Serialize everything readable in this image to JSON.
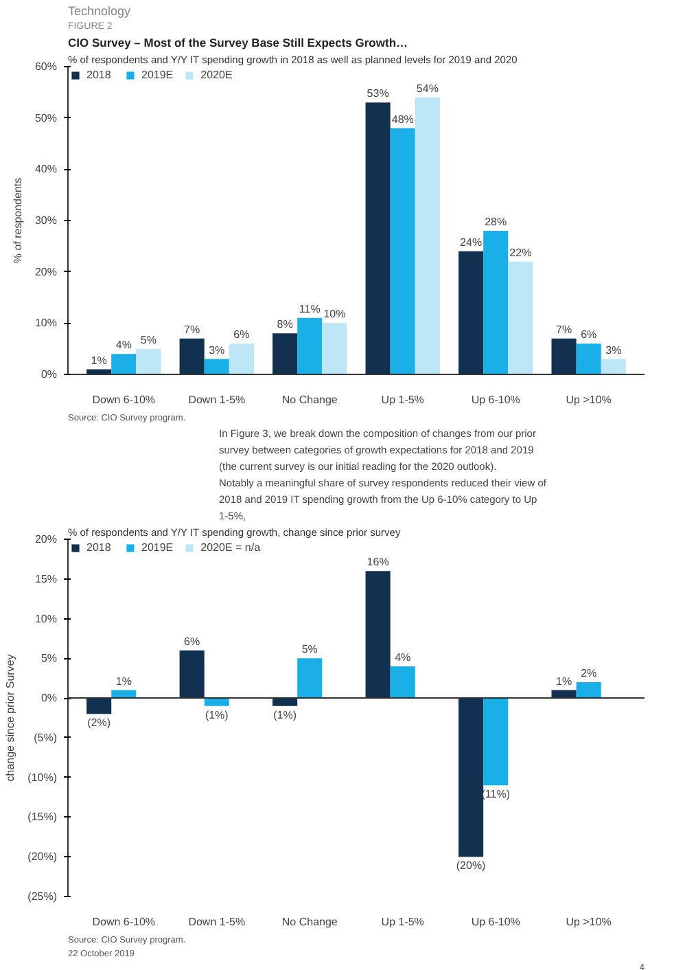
{
  "chart_data": [
    {
      "type": "bar",
      "title": "CIO Survey – Most of the Survey Base Still Expects Growth…",
      "subtitle": "% of respondents and Y/Y IT spending growth in 2018 as well as planned levels for 2019 and 2020",
      "annotations": [
        "Technology",
        "FIGURE 2",
        "Source: CIO Survey program.",
        "In Figure 3, we break down the composition of changes from our prior survey between categories of growth expectations for 2018 and 2019 (the current survey is our initial reading for the 2020 outlook). Notably a meaningful share of survey respondents reduced their view of 2018 and 2019 IT spending growth from the Up 6-10% category to Up 1-5%,"
      ],
      "ylabel": "% of respondents",
      "categories": [
        "Down 6-10%",
        "Down 1-5%",
        "No Change",
        "Up 1-5%",
        "Up 6-10%",
        "Up >10%"
      ],
      "series": [
        {
          "name": "2018",
          "color": "#12304f",
          "values": [
            1,
            7,
            8,
            53,
            24,
            7
          ],
          "value_labels": [
            "1%",
            "7%",
            "8%",
            "53%",
            "24%",
            "7%"
          ]
        },
        {
          "name": "2019E",
          "color": "#1aafe6",
          "values": [
            4,
            3,
            11,
            48,
            28,
            6
          ],
          "value_labels": [
            "4%",
            "3%",
            "11%",
            "48%",
            "28%",
            "6%"
          ]
        },
        {
          "name": "2020E",
          "color": "#bde6f6",
          "values": [
            5,
            6,
            10,
            54,
            22,
            3
          ],
          "value_labels": [
            "5%",
            "6%",
            "10%",
            "54%",
            "22%",
            "3%"
          ]
        }
      ],
      "ylim": [
        0,
        60
      ],
      "yticks": [
        {
          "value": 0,
          "label": "0%"
        },
        {
          "value": 10,
          "label": "10%"
        },
        {
          "value": 20,
          "label": "20%"
        },
        {
          "value": 30,
          "label": "30%"
        },
        {
          "value": 40,
          "label": "40%"
        },
        {
          "value": 50,
          "label": "50%"
        },
        {
          "value": 60,
          "label": "60%"
        }
      ],
      "grid": false,
      "legend": "top left"
    },
    {
      "type": "bar",
      "subtitle": "% of respondents and Y/Y IT spending growth, change since prior survey",
      "annotations": [
        "Source: CIO Survey program.",
        "22 October 2019",
        "4"
      ],
      "ylabel": "change since prior Survey",
      "categories": [
        "Down 6-10%",
        "Down 1-5%",
        "No Change",
        "Up 1-5%",
        "Up 6-10%",
        "Up >10%"
      ],
      "series": [
        {
          "name": "2018",
          "color": "#12304f",
          "values": [
            -2,
            6,
            -1,
            16,
            -20,
            1
          ],
          "value_labels": [
            "(2%)",
            "6%",
            "(1%)",
            "16%",
            "(20%)",
            "1%"
          ]
        },
        {
          "name": "2019E",
          "color": "#1aafe6",
          "values": [
            1,
            -1,
            5,
            4,
            -11,
            2
          ],
          "value_labels": [
            "1%",
            "(1%)",
            "5%",
            "4%",
            "(11%)",
            "2%"
          ]
        },
        {
          "name": "2020E = n/a",
          "color": "#bde6f6",
          "values": [
            null,
            null,
            null,
            null,
            null,
            null
          ]
        }
      ],
      "ylim": [
        -25,
        20
      ],
      "yticks": [
        {
          "value": -25,
          "label": "(25%)"
        },
        {
          "value": -20,
          "label": "(20%)"
        },
        {
          "value": -15,
          "label": "(15%)"
        },
        {
          "value": -10,
          "label": "(10%)"
        },
        {
          "value": -5,
          "label": "(5%)"
        },
        {
          "value": 0,
          "label": "0%"
        },
        {
          "value": 5,
          "label": "5%"
        },
        {
          "value": 10,
          "label": "10%"
        },
        {
          "value": 15,
          "label": "15%"
        },
        {
          "value": 20,
          "label": "20%"
        }
      ],
      "ref_lines": [
        {
          "axis": "y",
          "value": 0,
          "color": "#333333"
        }
      ],
      "grid": false,
      "legend": "top left"
    }
  ]
}
